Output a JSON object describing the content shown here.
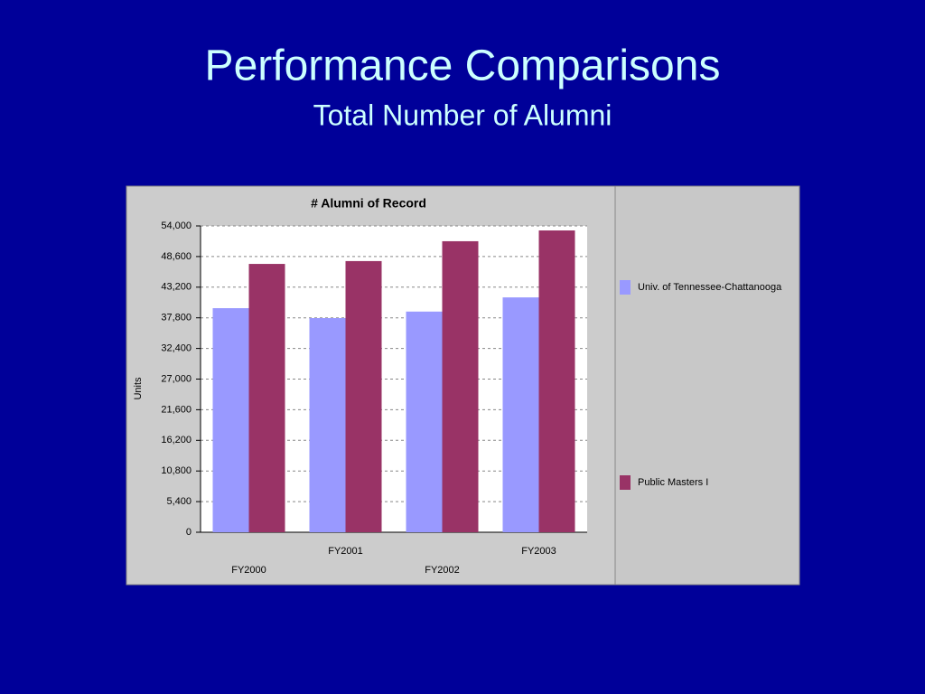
{
  "slide": {
    "title": "Performance Comparisons",
    "subtitle": "Total Number of Alumni"
  },
  "chart_data": {
    "type": "bar",
    "title": "# Alumni of Record",
    "y_label": "Units",
    "categories": [
      "FY2000",
      "FY2001",
      "FY2002",
      "FY2003"
    ],
    "series": [
      {
        "name": "Univ. of Tennessee-Chattanooga",
        "color": "#9999ff",
        "values": [
          39500,
          37750,
          38900,
          41400
        ]
      },
      {
        "name": "Public Masters I",
        "color": "#993366",
        "values": [
          47300,
          47800,
          51300,
          53200
        ]
      }
    ],
    "ylim": [
      0,
      54000
    ],
    "yticks": [
      0,
      {
        "value": 5400,
        "label": "5,400"
      },
      {
        "value": 10800,
        "label": "10,800"
      },
      {
        "value": 16200,
        "label": "16,200"
      },
      {
        "value": 21600,
        "label": "21,600"
      },
      {
        "value": 27000,
        "label": "27,000"
      },
      {
        "value": 32400,
        "label": "32,400"
      },
      {
        "value": 37800,
        "label": "37,800"
      },
      {
        "value": 43200,
        "label": "43,200"
      },
      {
        "value": 48600,
        "label": "48,600"
      },
      {
        "value": 54000,
        "label": "54,000"
      }
    ],
    "grid": true,
    "legend": "right"
  }
}
